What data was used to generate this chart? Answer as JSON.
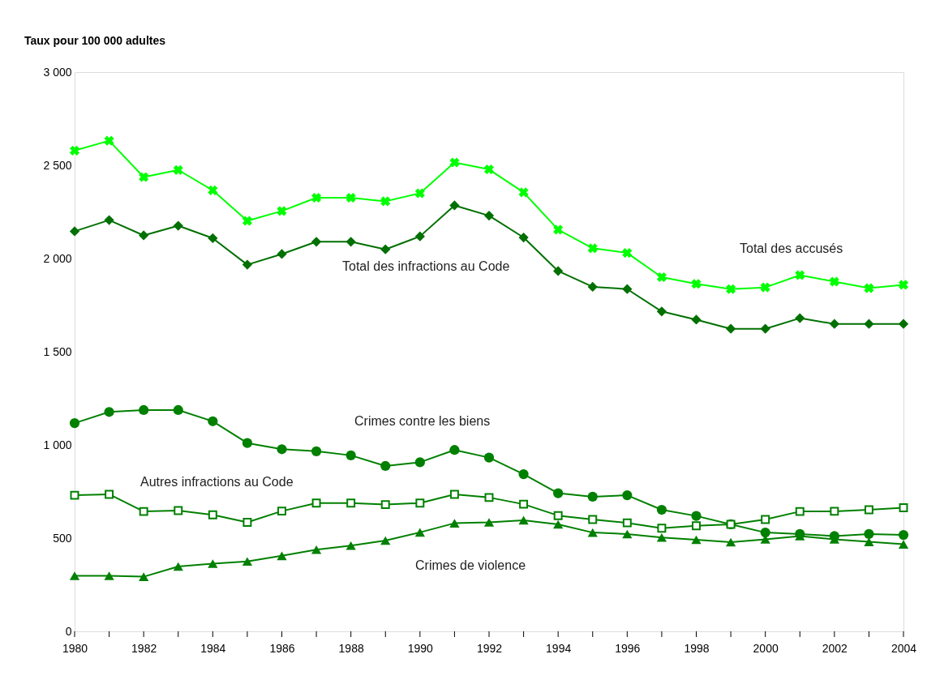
{
  "chart_data": {
    "type": "line",
    "ylabel": "Taux pour 100 000 adultes",
    "x": [
      1980,
      1981,
      1982,
      1983,
      1984,
      1985,
      1986,
      1987,
      1988,
      1989,
      1990,
      1991,
      1992,
      1993,
      1994,
      1995,
      1996,
      1997,
      1998,
      1999,
      2000,
      2001,
      2002,
      2003,
      2004
    ],
    "xlim": [
      1980,
      2004
    ],
    "xticks": [
      1980,
      {
        "value": 1981,
        "label": null
      },
      1982,
      {
        "value": 1983,
        "label": null
      },
      1984,
      {
        "value": 1985,
        "label": null
      },
      1986,
      {
        "value": 1987,
        "label": null
      },
      1988,
      {
        "value": 1989,
        "label": null
      },
      1990,
      {
        "value": 1991,
        "label": null
      },
      1992,
      {
        "value": 1993,
        "label": null
      },
      1994,
      {
        "value": 1995,
        "label": null
      },
      1996,
      {
        "value": 1997,
        "label": null
      },
      1998,
      {
        "value": 1999,
        "label": null
      },
      2000,
      {
        "value": 2001,
        "label": null
      },
      2002,
      {
        "value": 2003,
        "label": null
      },
      2004
    ],
    "ylim": [
      0,
      3000
    ],
    "yticks": [
      0,
      500,
      {
        "value": 1000,
        "label": "1 000"
      },
      {
        "value": 1500,
        "label": "1 500"
      },
      {
        "value": 2000,
        "label": "2 000"
      },
      {
        "value": 2500,
        "label": "2 500"
      },
      {
        "value": 3000,
        "label": "3 000"
      }
    ],
    "grid": false,
    "legend": false,
    "line_style": "solid",
    "series": [
      {
        "name": "Total des accusés",
        "color": "#00ff00",
        "marker": "cross",
        "values": [
          2579,
          2632,
          2437,
          2475,
          2366,
          2202,
          2255,
          2326,
          2326,
          2307,
          2350,
          2515,
          2478,
          2355,
          2155,
          2055,
          2030,
          1900,
          1864,
          1836,
          1845,
          1911,
          1876,
          1841,
          1859
        ]
      },
      {
        "name": "Total des infractions au Code",
        "color": "#007000",
        "marker": "diamond",
        "values": [
          2146,
          2206,
          2124,
          2176,
          2109,
          1967,
          2024,
          2090,
          2090,
          2049,
          2119,
          2285,
          2230,
          2113,
          1933,
          1848,
          1836,
          1716,
          1672,
          1623,
          1623,
          1680,
          1649,
          1649,
          1649
        ]
      },
      {
        "name": "Crimes contre les biens",
        "color": "#008000",
        "marker": "circle",
        "values": [
          1117,
          1177,
          1187,
          1187,
          1127,
          1010,
          977,
          966,
          944,
          887,
          907,
          973,
          932,
          843,
          741,
          722,
          730,
          652,
          619,
          574,
          530,
          522,
          511,
          522,
          517
        ]
      },
      {
        "name": "Autres infractions au Code",
        "color": "#008000",
        "marker": "square",
        "values": [
          730,
          735,
          643,
          648,
          625,
          585,
          645,
          688,
          688,
          680,
          688,
          735,
          718,
          682,
          621,
          600,
          582,
          553,
          566,
          574,
          600,
          643,
          644,
          652,
          663
        ]
      },
      {
        "name": "Crimes de violence",
        "color": "#008000",
        "marker": "triangle",
        "values": [
          298,
          298,
          293,
          348,
          363,
          375,
          405,
          438,
          460,
          487,
          531,
          580,
          585,
          596,
          574,
          530,
          522,
          503,
          491,
          478,
          494,
          511,
          494,
          480,
          467
        ]
      }
    ]
  }
}
